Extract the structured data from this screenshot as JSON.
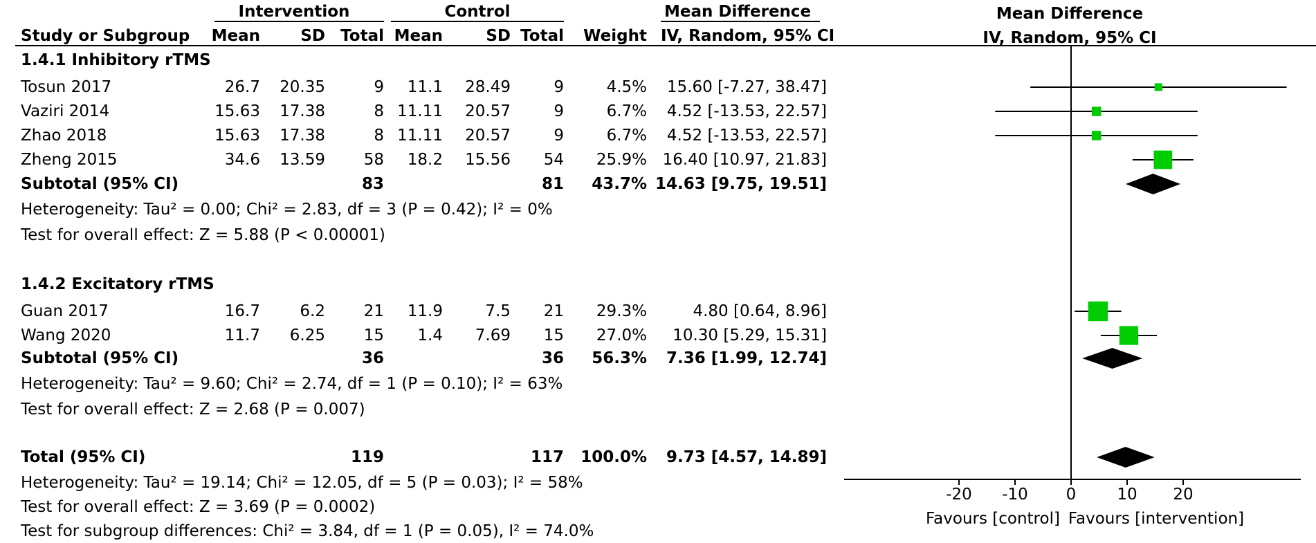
{
  "headers": {
    "group_intervention": "Intervention",
    "group_control": "Control",
    "group_md": "Mean Difference",
    "study": "Study or Subgroup",
    "mean": "Mean",
    "sd": "SD",
    "total": "Total",
    "weight": "Weight",
    "ci": "IV, Random, 95% CI",
    "plot_title": "Mean Difference",
    "plot_subtitle": "IV, Random, 95% CI"
  },
  "subgroups": [
    {
      "title": "1.4.1 Inhibitory rTMS",
      "studies": [
        {
          "name": "Tosun 2017",
          "i_mean": "26.7",
          "i_sd": "20.35",
          "i_total": "9",
          "c_mean": "11.1",
          "c_sd": "28.49",
          "c_total": "9",
          "weight": "4.5%",
          "ci": "15.60 [-7.27, 38.47]"
        },
        {
          "name": "Vaziri 2014",
          "i_mean": "15.63",
          "i_sd": "17.38",
          "i_total": "8",
          "c_mean": "11.11",
          "c_sd": "20.57",
          "c_total": "9",
          "weight": "6.7%",
          "ci": "4.52 [-13.53, 22.57]"
        },
        {
          "name": "Zhao 2018",
          "i_mean": "15.63",
          "i_sd": "17.38",
          "i_total": "8",
          "c_mean": "11.11",
          "c_sd": "20.57",
          "c_total": "9",
          "weight": "6.7%",
          "ci": "4.52 [-13.53, 22.57]"
        },
        {
          "name": "Zheng 2015",
          "i_mean": "34.6",
          "i_sd": "13.59",
          "i_total": "58",
          "c_mean": "18.2",
          "c_sd": "15.56",
          "c_total": "54",
          "weight": "25.9%",
          "ci": "16.40 [10.97, 21.83]"
        }
      ],
      "subtotal": {
        "label": "Subtotal (95% CI)",
        "i_total": "83",
        "c_total": "81",
        "weight": "43.7%",
        "ci": "14.63 [9.75, 19.51]"
      },
      "heterogeneity": "Heterogeneity: Tau² = 0.00; Chi² = 2.83, df = 3 (P = 0.42); I² = 0%",
      "overall": "Test for overall effect: Z = 5.88 (P < 0.00001)"
    },
    {
      "title": "1.4.2 Excitatory rTMS",
      "studies": [
        {
          "name": "Guan 2017",
          "i_mean": "16.7",
          "i_sd": "6.2",
          "i_total": "21",
          "c_mean": "11.9",
          "c_sd": "7.5",
          "c_total": "21",
          "weight": "29.3%",
          "ci": "4.80 [0.64, 8.96]"
        },
        {
          "name": "Wang 2020",
          "i_mean": "11.7",
          "i_sd": "6.25",
          "i_total": "15",
          "c_mean": "1.4",
          "c_sd": "7.69",
          "c_total": "15",
          "weight": "27.0%",
          "ci": "10.30 [5.29, 15.31]"
        }
      ],
      "subtotal": {
        "label": "Subtotal (95% CI)",
        "i_total": "36",
        "c_total": "36",
        "weight": "56.3%",
        "ci": "7.36 [1.99, 12.74]"
      },
      "heterogeneity": "Heterogeneity: Tau² = 9.60; Chi² = 2.74, df = 1 (P = 0.10); I² = 63%",
      "overall": "Test for overall effect: Z = 2.68 (P = 0.007)"
    }
  ],
  "total": {
    "label": "Total (95% CI)",
    "i_total": "119",
    "c_total": "117",
    "weight": "100.0%",
    "ci": "9.73 [4.57, 14.89]"
  },
  "total_heterogeneity": "Heterogeneity: Tau² = 19.14; Chi² = 12.05, df = 5 (P = 0.03); I² = 58%",
  "total_overall": "Test for overall effect: Z = 3.69 (P = 0.0002)",
  "subgroup_diff": "Test for subgroup differences: Chi² = 3.84, df = 1 (P = 0.05), I² = 74.0%",
  "chart_data": {
    "type": "forest",
    "xlim": [
      -40,
      40
    ],
    "x_ticks": [
      -20,
      -10,
      0,
      10,
      20
    ],
    "favours_left": "Favours [control]",
    "favours_right": "Favours [intervention]",
    "marker_color": "#00cc00",
    "studies": [
      {
        "name": "Tosun 2017",
        "est": 15.6,
        "lo": -7.27,
        "hi": 38.47,
        "weight": 4.5
      },
      {
        "name": "Vaziri 2014",
        "est": 4.52,
        "lo": -13.53,
        "hi": 22.57,
        "weight": 6.7
      },
      {
        "name": "Zhao 2018",
        "est": 4.52,
        "lo": -13.53,
        "hi": 22.57,
        "weight": 6.7
      },
      {
        "name": "Zheng 2015",
        "est": 16.4,
        "lo": 10.97,
        "hi": 21.83,
        "weight": 25.9
      },
      {
        "name": "Guan 2017",
        "est": 4.8,
        "lo": 0.64,
        "hi": 8.96,
        "weight": 29.3
      },
      {
        "name": "Wang 2020",
        "est": 10.3,
        "lo": 5.29,
        "hi": 15.31,
        "weight": 27.0
      }
    ],
    "diamonds": [
      {
        "name": "Subtotal 1.4.1",
        "est": 14.63,
        "lo": 9.75,
        "hi": 19.51
      },
      {
        "name": "Subtotal 1.4.2",
        "est": 7.36,
        "lo": 1.99,
        "hi": 12.74
      },
      {
        "name": "Total",
        "est": 9.73,
        "lo": 4.57,
        "hi": 14.89
      }
    ]
  }
}
